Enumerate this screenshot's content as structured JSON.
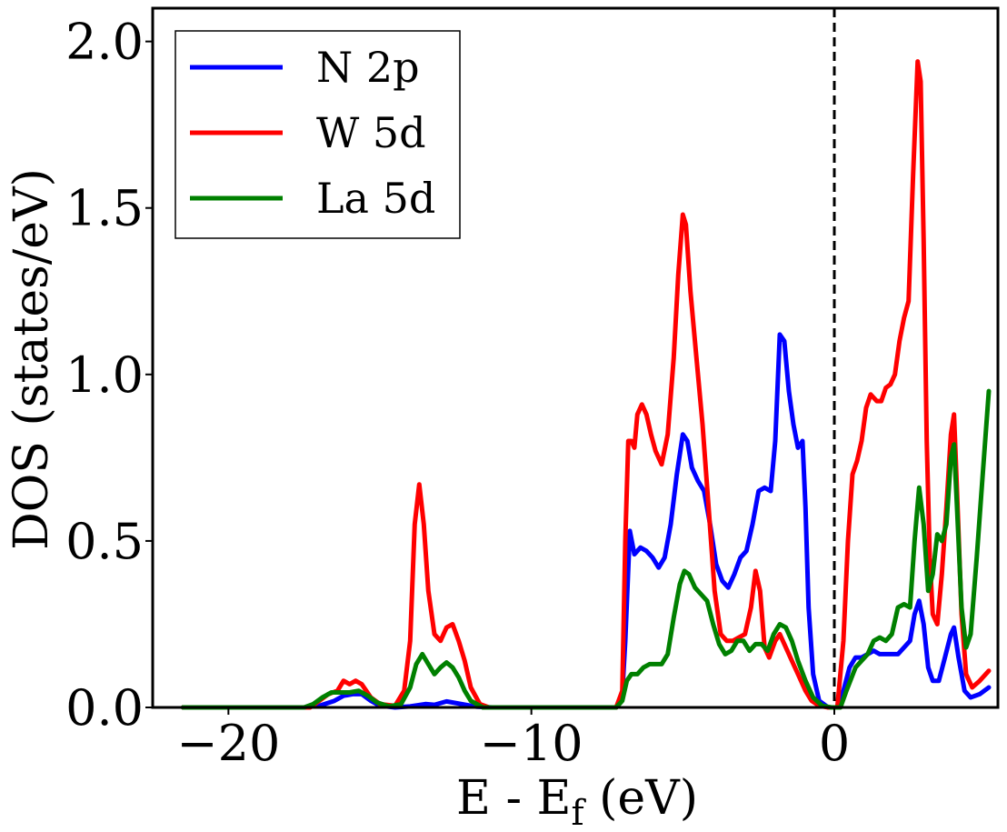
{
  "chart_data": {
    "type": "line",
    "title": "",
    "xlabel_main": "E - E",
    "xlabel_sub": "f",
    "xlabel_unit": " (eV)",
    "ylabel": "DOS (states/eV)",
    "xlim": [
      -22.5,
      5.4
    ],
    "ylim": [
      0,
      2.1
    ],
    "xticks": [
      -20,
      -10,
      0
    ],
    "xtick_labels": [
      "−20",
      "−10",
      "0"
    ],
    "yticks": [
      0.0,
      0.5,
      1.0,
      1.5,
      2.0
    ],
    "ytick_labels": [
      "0.0",
      "0.5",
      "1.0",
      "1.5",
      "2.0"
    ],
    "fermi_level": 0,
    "legend_position": "top-left",
    "series": [
      {
        "name": "N 2p",
        "color": "#0000ff",
        "points": [
          [
            -21.5,
            0
          ],
          [
            -17.5,
            0
          ],
          [
            -17.0,
            0.005
          ],
          [
            -16.5,
            0.02
          ],
          [
            -16.2,
            0.035
          ],
          [
            -15.9,
            0.04
          ],
          [
            -15.6,
            0.04
          ],
          [
            -15.3,
            0.02
          ],
          [
            -15.0,
            0.005
          ],
          [
            -14.5,
            0
          ],
          [
            -14.0,
            0.003
          ],
          [
            -13.5,
            0.01
          ],
          [
            -13.2,
            0.008
          ],
          [
            -12.8,
            0.018
          ],
          [
            -12.3,
            0.01
          ],
          [
            -11.8,
            0.002
          ],
          [
            -11.3,
            0
          ],
          [
            -7.2,
            0
          ],
          [
            -7.0,
            0.04
          ],
          [
            -6.9,
            0.2
          ],
          [
            -6.75,
            0.53
          ],
          [
            -6.6,
            0.46
          ],
          [
            -6.4,
            0.48
          ],
          [
            -6.2,
            0.47
          ],
          [
            -6.0,
            0.45
          ],
          [
            -5.8,
            0.42
          ],
          [
            -5.6,
            0.45
          ],
          [
            -5.4,
            0.55
          ],
          [
            -5.2,
            0.7
          ],
          [
            -5.0,
            0.82
          ],
          [
            -4.85,
            0.8
          ],
          [
            -4.7,
            0.72
          ],
          [
            -4.5,
            0.68
          ],
          [
            -4.3,
            0.65
          ],
          [
            -4.1,
            0.55
          ],
          [
            -3.9,
            0.43
          ],
          [
            -3.7,
            0.38
          ],
          [
            -3.5,
            0.36
          ],
          [
            -3.3,
            0.4
          ],
          [
            -3.1,
            0.45
          ],
          [
            -2.9,
            0.47
          ],
          [
            -2.7,
            0.55
          ],
          [
            -2.5,
            0.65
          ],
          [
            -2.3,
            0.66
          ],
          [
            -2.1,
            0.65
          ],
          [
            -1.95,
            0.8
          ],
          [
            -1.8,
            1.12
          ],
          [
            -1.65,
            1.1
          ],
          [
            -1.5,
            0.95
          ],
          [
            -1.35,
            0.85
          ],
          [
            -1.2,
            0.78
          ],
          [
            -1.05,
            0.8
          ],
          [
            -0.95,
            0.6
          ],
          [
            -0.85,
            0.3
          ],
          [
            -0.7,
            0.1
          ],
          [
            -0.5,
            0.02
          ],
          [
            -0.2,
            0
          ],
          [
            0.1,
            0
          ],
          [
            0.3,
            0.05
          ],
          [
            0.5,
            0.12
          ],
          [
            0.7,
            0.15
          ],
          [
            0.9,
            0.15
          ],
          [
            1.1,
            0.16
          ],
          [
            1.3,
            0.17
          ],
          [
            1.5,
            0.16
          ],
          [
            1.7,
            0.16
          ],
          [
            1.9,
            0.16
          ],
          [
            2.1,
            0.16
          ],
          [
            2.3,
            0.18
          ],
          [
            2.5,
            0.2
          ],
          [
            2.65,
            0.28
          ],
          [
            2.8,
            0.32
          ],
          [
            2.95,
            0.25
          ],
          [
            3.1,
            0.12
          ],
          [
            3.25,
            0.08
          ],
          [
            3.45,
            0.08
          ],
          [
            3.65,
            0.15
          ],
          [
            3.85,
            0.22
          ],
          [
            3.95,
            0.24
          ],
          [
            4.1,
            0.15
          ],
          [
            4.3,
            0.05
          ],
          [
            4.5,
            0.03
          ],
          [
            4.8,
            0.04
          ],
          [
            5.1,
            0.06
          ]
        ]
      },
      {
        "name": "W 5d",
        "color": "#ff0000",
        "points": [
          [
            -21.5,
            0
          ],
          [
            -17.3,
            0
          ],
          [
            -17.0,
            0.02
          ],
          [
            -16.7,
            0.04
          ],
          [
            -16.4,
            0.05
          ],
          [
            -16.2,
            0.08
          ],
          [
            -16.0,
            0.07
          ],
          [
            -15.8,
            0.08
          ],
          [
            -15.6,
            0.07
          ],
          [
            -15.3,
            0.03
          ],
          [
            -15.0,
            0.01
          ],
          [
            -14.5,
            0.005
          ],
          [
            -14.2,
            0.05
          ],
          [
            -14.0,
            0.2
          ],
          [
            -13.85,
            0.55
          ],
          [
            -13.7,
            0.67
          ],
          [
            -13.55,
            0.55
          ],
          [
            -13.4,
            0.35
          ],
          [
            -13.2,
            0.22
          ],
          [
            -13.0,
            0.2
          ],
          [
            -12.8,
            0.24
          ],
          [
            -12.6,
            0.25
          ],
          [
            -12.4,
            0.2
          ],
          [
            -12.2,
            0.14
          ],
          [
            -12.0,
            0.06
          ],
          [
            -11.7,
            0.01
          ],
          [
            -11.4,
            0
          ],
          [
            -7.2,
            0
          ],
          [
            -7.0,
            0.05
          ],
          [
            -6.9,
            0.5
          ],
          [
            -6.8,
            0.8
          ],
          [
            -6.7,
            0.8
          ],
          [
            -6.6,
            0.78
          ],
          [
            -6.5,
            0.88
          ],
          [
            -6.35,
            0.91
          ],
          [
            -6.2,
            0.88
          ],
          [
            -6.05,
            0.82
          ],
          [
            -5.9,
            0.77
          ],
          [
            -5.7,
            0.73
          ],
          [
            -5.5,
            0.82
          ],
          [
            -5.3,
            1.05
          ],
          [
            -5.15,
            1.3
          ],
          [
            -5.0,
            1.48
          ],
          [
            -4.9,
            1.45
          ],
          [
            -4.75,
            1.25
          ],
          [
            -4.55,
            1.05
          ],
          [
            -4.35,
            0.85
          ],
          [
            -4.15,
            0.6
          ],
          [
            -3.95,
            0.35
          ],
          [
            -3.75,
            0.22
          ],
          [
            -3.55,
            0.2
          ],
          [
            -3.35,
            0.2
          ],
          [
            -3.15,
            0.21
          ],
          [
            -2.95,
            0.22
          ],
          [
            -2.75,
            0.3
          ],
          [
            -2.6,
            0.41
          ],
          [
            -2.45,
            0.35
          ],
          [
            -2.3,
            0.18
          ],
          [
            -2.15,
            0.15
          ],
          [
            -1.95,
            0.2
          ],
          [
            -1.8,
            0.22
          ],
          [
            -1.6,
            0.18
          ],
          [
            -1.4,
            0.14
          ],
          [
            -1.2,
            0.1
          ],
          [
            -0.95,
            0.05
          ],
          [
            -0.75,
            0.02
          ],
          [
            -0.5,
            0.005
          ],
          [
            -0.2,
            0
          ],
          [
            0.1,
            0
          ],
          [
            0.3,
            0.2
          ],
          [
            0.45,
            0.5
          ],
          [
            0.6,
            0.7
          ],
          [
            0.75,
            0.74
          ],
          [
            0.9,
            0.8
          ],
          [
            1.05,
            0.9
          ],
          [
            1.2,
            0.94
          ],
          [
            1.4,
            0.92
          ],
          [
            1.55,
            0.92
          ],
          [
            1.7,
            0.96
          ],
          [
            1.85,
            0.97
          ],
          [
            2.0,
            1.0
          ],
          [
            2.15,
            1.1
          ],
          [
            2.3,
            1.17
          ],
          [
            2.45,
            1.22
          ],
          [
            2.6,
            1.6
          ],
          [
            2.75,
            1.94
          ],
          [
            2.85,
            1.88
          ],
          [
            2.95,
            1.4
          ],
          [
            3.05,
            0.8
          ],
          [
            3.15,
            0.45
          ],
          [
            3.25,
            0.28
          ],
          [
            3.4,
            0.25
          ],
          [
            3.55,
            0.4
          ],
          [
            3.7,
            0.6
          ],
          [
            3.85,
            0.82
          ],
          [
            3.95,
            0.88
          ],
          [
            4.05,
            0.65
          ],
          [
            4.2,
            0.28
          ],
          [
            4.35,
            0.1
          ],
          [
            4.55,
            0.06
          ],
          [
            4.8,
            0.08
          ],
          [
            5.1,
            0.11
          ]
        ]
      },
      {
        "name": "La 5d",
        "color": "#008000",
        "points": [
          [
            -21.5,
            0
          ],
          [
            -17.5,
            0
          ],
          [
            -17.2,
            0.01
          ],
          [
            -16.9,
            0.03
          ],
          [
            -16.6,
            0.045
          ],
          [
            -16.3,
            0.045
          ],
          [
            -16.0,
            0.045
          ],
          [
            -15.7,
            0.05
          ],
          [
            -15.4,
            0.035
          ],
          [
            -15.1,
            0.015
          ],
          [
            -14.7,
            0.003
          ],
          [
            -14.3,
            0.01
          ],
          [
            -14.0,
            0.06
          ],
          [
            -13.8,
            0.13
          ],
          [
            -13.6,
            0.16
          ],
          [
            -13.4,
            0.13
          ],
          [
            -13.2,
            0.1
          ],
          [
            -13.0,
            0.12
          ],
          [
            -12.8,
            0.135
          ],
          [
            -12.6,
            0.12
          ],
          [
            -12.4,
            0.09
          ],
          [
            -12.2,
            0.05
          ],
          [
            -12.0,
            0.02
          ],
          [
            -11.6,
            0
          ],
          [
            -7.2,
            0
          ],
          [
            -7.0,
            0.02
          ],
          [
            -6.85,
            0.08
          ],
          [
            -6.7,
            0.1
          ],
          [
            -6.5,
            0.1
          ],
          [
            -6.3,
            0.12
          ],
          [
            -6.1,
            0.13
          ],
          [
            -5.9,
            0.13
          ],
          [
            -5.7,
            0.13
          ],
          [
            -5.5,
            0.16
          ],
          [
            -5.3,
            0.27
          ],
          [
            -5.1,
            0.37
          ],
          [
            -4.95,
            0.41
          ],
          [
            -4.8,
            0.4
          ],
          [
            -4.6,
            0.36
          ],
          [
            -4.4,
            0.34
          ],
          [
            -4.2,
            0.32
          ],
          [
            -4.0,
            0.25
          ],
          [
            -3.8,
            0.19
          ],
          [
            -3.6,
            0.16
          ],
          [
            -3.4,
            0.17
          ],
          [
            -3.2,
            0.2
          ],
          [
            -3.0,
            0.2
          ],
          [
            -2.8,
            0.17
          ],
          [
            -2.6,
            0.19
          ],
          [
            -2.4,
            0.19
          ],
          [
            -2.2,
            0.17
          ],
          [
            -2.0,
            0.22
          ],
          [
            -1.8,
            0.25
          ],
          [
            -1.6,
            0.24
          ],
          [
            -1.4,
            0.2
          ],
          [
            -1.2,
            0.14
          ],
          [
            -0.95,
            0.08
          ],
          [
            -0.7,
            0.03
          ],
          [
            -0.4,
            0.005
          ],
          [
            -0.1,
            0
          ],
          [
            0.2,
            0
          ],
          [
            0.4,
            0.05
          ],
          [
            0.7,
            0.12
          ],
          [
            0.9,
            0.14
          ],
          [
            1.1,
            0.16
          ],
          [
            1.3,
            0.2
          ],
          [
            1.5,
            0.21
          ],
          [
            1.7,
            0.2
          ],
          [
            1.9,
            0.22
          ],
          [
            2.1,
            0.3
          ],
          [
            2.3,
            0.31
          ],
          [
            2.5,
            0.3
          ],
          [
            2.65,
            0.5
          ],
          [
            2.8,
            0.66
          ],
          [
            2.95,
            0.55
          ],
          [
            3.1,
            0.35
          ],
          [
            3.25,
            0.4
          ],
          [
            3.4,
            0.52
          ],
          [
            3.55,
            0.5
          ],
          [
            3.7,
            0.55
          ],
          [
            3.85,
            0.75
          ],
          [
            3.95,
            0.79
          ],
          [
            4.05,
            0.6
          ],
          [
            4.2,
            0.3
          ],
          [
            4.35,
            0.18
          ],
          [
            4.5,
            0.22
          ],
          [
            4.7,
            0.45
          ],
          [
            4.9,
            0.7
          ],
          [
            5.1,
            0.95
          ]
        ]
      }
    ]
  }
}
